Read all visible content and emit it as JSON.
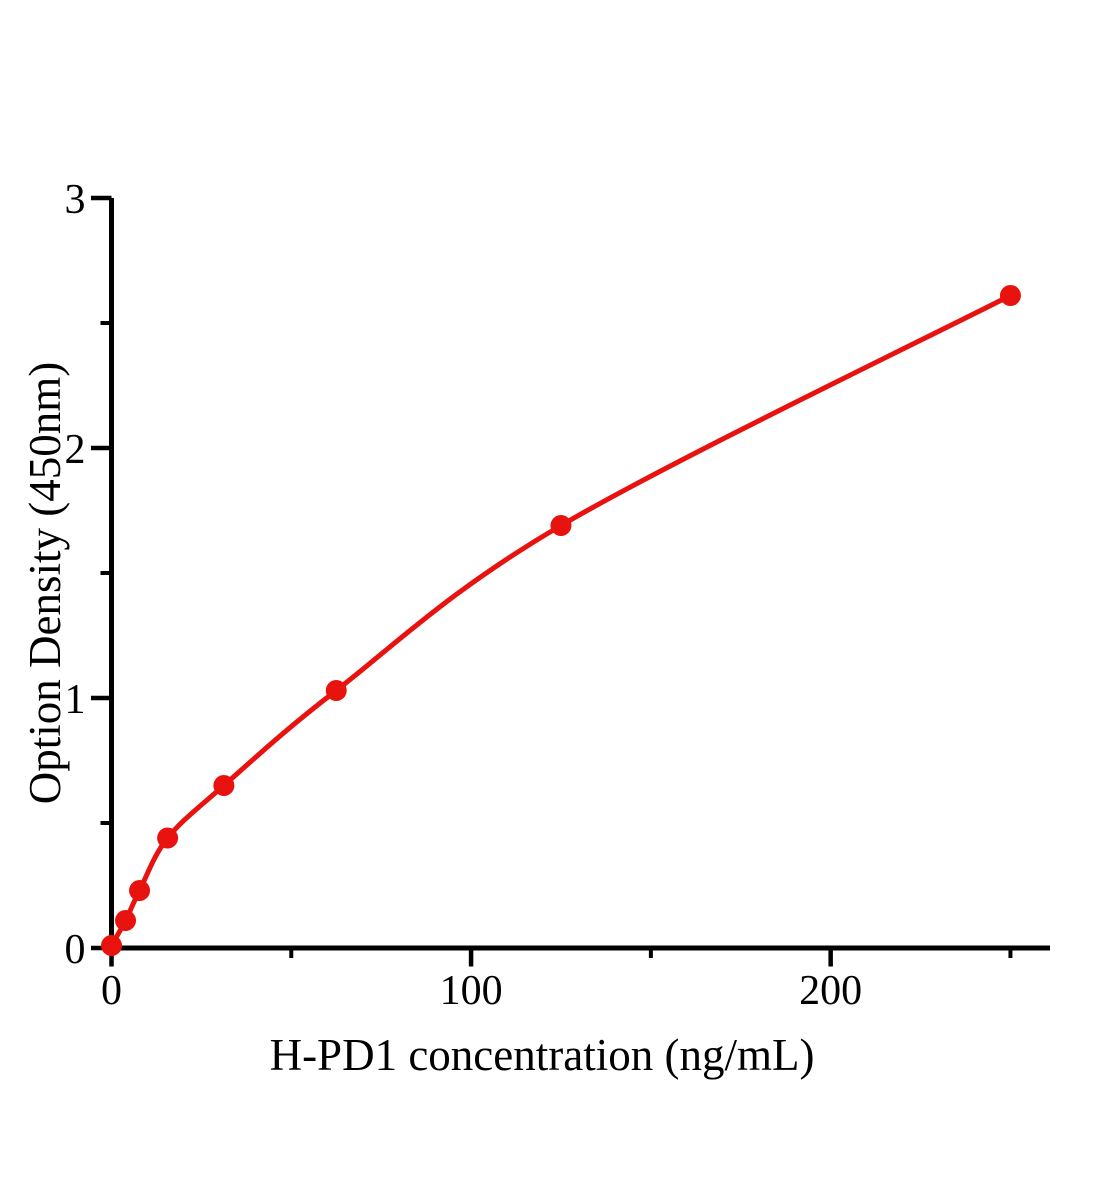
{
  "figure": {
    "background": "#ffffff"
  },
  "chart_data": {
    "type": "line",
    "title": "",
    "xlabel": "H-PD1 concentration (ng/mL)",
    "ylabel": "Option Density (450nm)",
    "x": [
      0,
      3.9,
      7.8,
      15.6,
      31.25,
      62.5,
      125,
      250
    ],
    "y": [
      0.01,
      0.11,
      0.23,
      0.44,
      0.65,
      1.03,
      1.69,
      2.61
    ],
    "xlim": [
      0,
      261
    ],
    "ylim": [
      0,
      3
    ],
    "x_major_ticks": [
      0,
      100,
      200
    ],
    "x_minor_ticks": [
      50,
      150,
      250
    ],
    "y_major_ticks": [
      0,
      1,
      2,
      3
    ],
    "y_minor_ticks": [
      0.5,
      1.5,
      2.5
    ],
    "grid": false,
    "legend": "none",
    "marker": "filled-circle",
    "curve_style": "smooth",
    "colors": {
      "line": "#e8120f",
      "marker": "#e8120f",
      "axis": "#000000",
      "tick_label": "#000000"
    }
  }
}
